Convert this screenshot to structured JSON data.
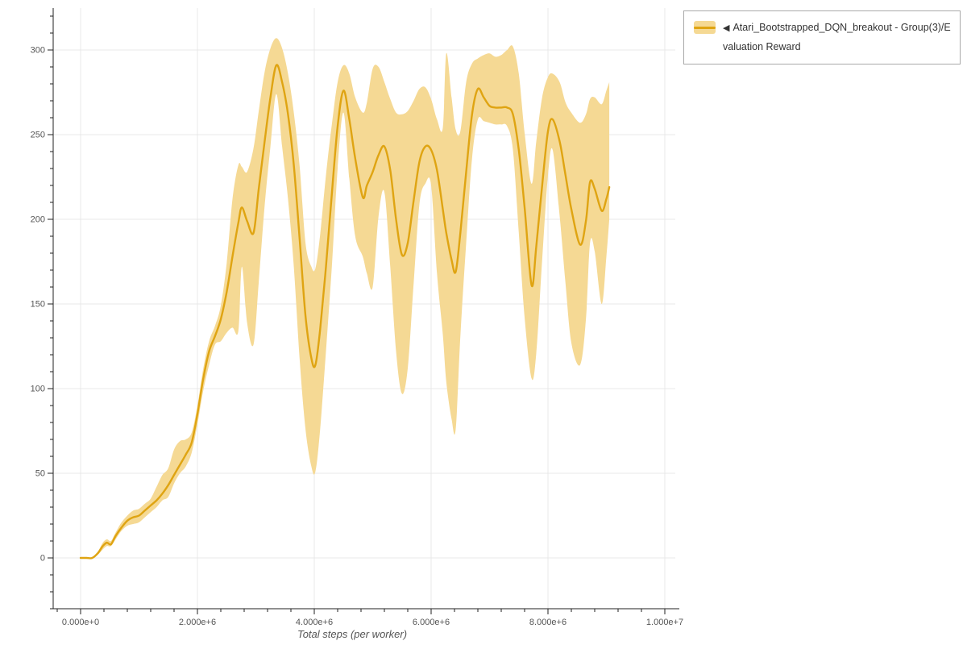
{
  "legend": {
    "marker": "◀",
    "label": "Atari_Bootstrapped_DQN_breakout - Group(3)/Evaluation Reward"
  },
  "colors": {
    "line": "#DFA412",
    "band": "#F5D994",
    "grid": "#E9E9E9",
    "axis": "#222222",
    "tick_label": "#555555",
    "axis_label": "#555555",
    "legend_border": "#A9A9A9",
    "legend_text": "#333333",
    "background": "#FFFFFF"
  },
  "chart_data": {
    "type": "line",
    "title": "",
    "xlabel": "Total steps (per worker)",
    "ylabel": "",
    "x_unit": "millions of steps",
    "xlim_millions": [
      0,
      10
    ],
    "ylim": [
      0,
      300
    ],
    "grid": true,
    "legend_position": "top-right-outside",
    "x_ticks": [
      {
        "value": 0,
        "label": "0.000e+0"
      },
      {
        "value": 2,
        "label": "2.000e+6"
      },
      {
        "value": 4,
        "label": "4.000e+6"
      },
      {
        "value": 6,
        "label": "6.000e+6"
      },
      {
        "value": 8,
        "label": "8.000e+6"
      },
      {
        "value": 10,
        "label": "1.000e+7"
      }
    ],
    "y_ticks": [
      0,
      50,
      100,
      150,
      200,
      250,
      300
    ],
    "x_minor_step": 0.4,
    "y_minor_step": 10,
    "series": [
      {
        "name": "Atari_Bootstrapped_DQN_breakout - Group(3)/Evaluation Reward",
        "color": "#DFA412",
        "band_color": "#F5D994",
        "points_format": [
          "x_millions",
          "mean",
          "band_lower",
          "band_upper"
        ],
        "points": [
          [
            0.0,
            0,
            0,
            0
          ],
          [
            0.1,
            0,
            0,
            0
          ],
          [
            0.2,
            0,
            0,
            0
          ],
          [
            0.3,
            3,
            2,
            4
          ],
          [
            0.38,
            7,
            5,
            9
          ],
          [
            0.45,
            9,
            7,
            11
          ],
          [
            0.52,
            8,
            7,
            10
          ],
          [
            0.6,
            13,
            11,
            15
          ],
          [
            0.7,
            18,
            16,
            21
          ],
          [
            0.8,
            22,
            19,
            25
          ],
          [
            0.9,
            24,
            20,
            28
          ],
          [
            1.0,
            25,
            21,
            29
          ],
          [
            1.1,
            28,
            24,
            32
          ],
          [
            1.2,
            31,
            27,
            35
          ],
          [
            1.3,
            34,
            30,
            42
          ],
          [
            1.4,
            38,
            34,
            49
          ],
          [
            1.5,
            43,
            36,
            53
          ],
          [
            1.6,
            49,
            44,
            64
          ],
          [
            1.7,
            55,
            50,
            69
          ],
          [
            1.8,
            61,
            54,
            70
          ],
          [
            1.9,
            68,
            62,
            74
          ],
          [
            2.0,
            85,
            79,
            90
          ],
          [
            2.1,
            106,
            99,
            112
          ],
          [
            2.2,
            122,
            114,
            128
          ],
          [
            2.3,
            131,
            126,
            137
          ],
          [
            2.4,
            141,
            128,
            149
          ],
          [
            2.5,
            157,
            133,
            174
          ],
          [
            2.6,
            178,
            136,
            212
          ],
          [
            2.7,
            198,
            134,
            232
          ],
          [
            2.76,
            207,
            172,
            231
          ],
          [
            2.85,
            199,
            139,
            228
          ],
          [
            2.96,
            192,
            126,
            242
          ],
          [
            3.05,
            218,
            163,
            264
          ],
          [
            3.15,
            246,
            208,
            287
          ],
          [
            3.25,
            272,
            243,
            301
          ],
          [
            3.35,
            291,
            274,
            307
          ],
          [
            3.45,
            281,
            243,
            301
          ],
          [
            3.55,
            262,
            212,
            286
          ],
          [
            3.65,
            232,
            172,
            263
          ],
          [
            3.75,
            188,
            117,
            231
          ],
          [
            3.85,
            143,
            76,
            186
          ],
          [
            3.95,
            118,
            54,
            172
          ],
          [
            4.02,
            114,
            51,
            171
          ],
          [
            4.1,
            135,
            76,
            191
          ],
          [
            4.2,
            172,
            122,
            226
          ],
          [
            4.3,
            215,
            172,
            256
          ],
          [
            4.4,
            255,
            230,
            281
          ],
          [
            4.5,
            276,
            263,
            291
          ],
          [
            4.6,
            259,
            224,
            286
          ],
          [
            4.7,
            236,
            190,
            272
          ],
          [
            4.83,
            213,
            178,
            263
          ],
          [
            4.9,
            220,
            168,
            269
          ],
          [
            5.0,
            228,
            160,
            289
          ],
          [
            5.1,
            238,
            202,
            290
          ],
          [
            5.2,
            243,
            216,
            281
          ],
          [
            5.3,
            229,
            172,
            271
          ],
          [
            5.4,
            200,
            122,
            263
          ],
          [
            5.5,
            179,
            97,
            262
          ],
          [
            5.6,
            186,
            112,
            264
          ],
          [
            5.7,
            211,
            162,
            270
          ],
          [
            5.8,
            234,
            209,
            277
          ],
          [
            5.9,
            243,
            221,
            278
          ],
          [
            6.0,
            241,
            220,
            271
          ],
          [
            6.1,
            229,
            168,
            259
          ],
          [
            6.2,
            206,
            132,
            254
          ],
          [
            6.26,
            192,
            104,
            298
          ],
          [
            6.35,
            176,
            82,
            272
          ],
          [
            6.42,
            169,
            76,
            253
          ],
          [
            6.5,
            192,
            131,
            252
          ],
          [
            6.6,
            228,
            186,
            281
          ],
          [
            6.7,
            262,
            236,
            292
          ],
          [
            6.8,
            277,
            259,
            295
          ],
          [
            6.9,
            272,
            258,
            297
          ],
          [
            7.0,
            267,
            257,
            298
          ],
          [
            7.1,
            266,
            256,
            296
          ],
          [
            7.2,
            266,
            256,
            297
          ],
          [
            7.3,
            266,
            255,
            300
          ],
          [
            7.4,
            262,
            241,
            302
          ],
          [
            7.5,
            241,
            192,
            286
          ],
          [
            7.6,
            207,
            142,
            251
          ],
          [
            7.72,
            161,
            106,
            221
          ],
          [
            7.8,
            184,
            121,
            246
          ],
          [
            7.9,
            220,
            176,
            272
          ],
          [
            8.0,
            252,
            226,
            284
          ],
          [
            8.08,
            259,
            241,
            286
          ],
          [
            8.2,
            246,
            202,
            281
          ],
          [
            8.3,
            226,
            162,
            269
          ],
          [
            8.4,
            206,
            127,
            263
          ],
          [
            8.55,
            185,
            114,
            257
          ],
          [
            8.65,
            199,
            141,
            262
          ],
          [
            8.72,
            222,
            186,
            271
          ],
          [
            8.8,
            218,
            181,
            272
          ],
          [
            8.92,
            205,
            150,
            268
          ],
          [
            9.0,
            212,
            178,
            276
          ],
          [
            9.05,
            219,
            200,
            281
          ]
        ]
      }
    ]
  }
}
